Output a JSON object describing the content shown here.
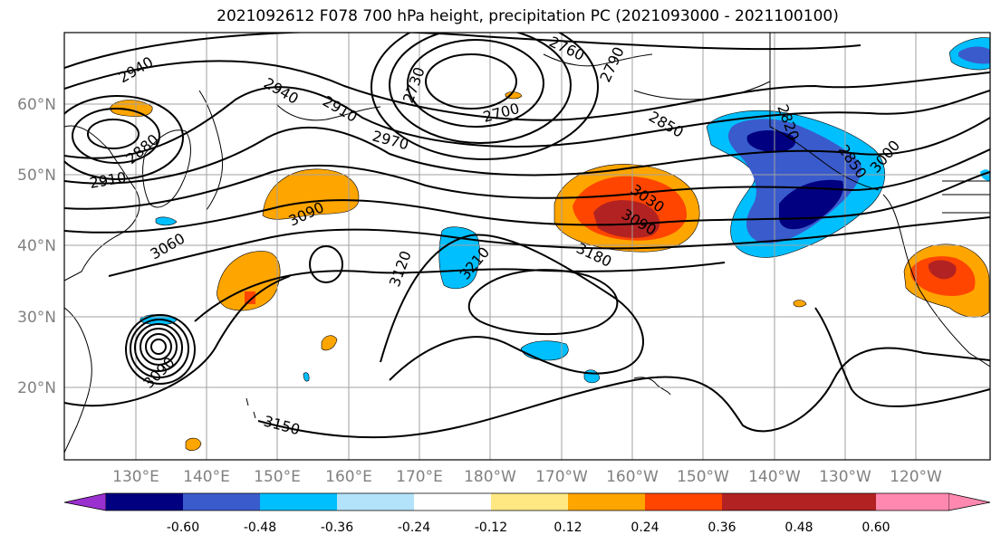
{
  "title": "2021092612 F078 700 hPa height, precipitation PC (2021093000 - 2021100100)",
  "map": {
    "lon_ticks": [
      "130°E",
      "140°E",
      "150°E",
      "160°E",
      "170°E",
      "180°W",
      "170°W",
      "160°W",
      "150°W",
      "140°W",
      "130°W",
      "120°W"
    ],
    "lat_ticks": [
      "60°N",
      "50°N",
      "40°N",
      "30°N",
      "20°N"
    ],
    "contour_labels": [
      "2940",
      "2880",
      "2910",
      "3060",
      "3090",
      "3090",
      "3150",
      "2940",
      "2910",
      "2970",
      "2730",
      "2700",
      "2760",
      "2790",
      "2850",
      "2820",
      "3030",
      "3090",
      "3180",
      "3120",
      "3210",
      "2850",
      "3000"
    ]
  },
  "colorbar": {
    "levels": [
      "-0.60",
      "-0.48",
      "-0.36",
      "-0.24",
      "-0.12",
      "0.12",
      "0.24",
      "0.36",
      "0.48",
      "0.60"
    ],
    "colors": [
      "#9b30d0",
      "#000080",
      "#3a5bcc",
      "#00bfff",
      "#b3e3fa",
      "#ffffff",
      "#ffe882",
      "#ffa500",
      "#ff4500",
      "#b22222",
      "#ff88b0"
    ]
  }
}
